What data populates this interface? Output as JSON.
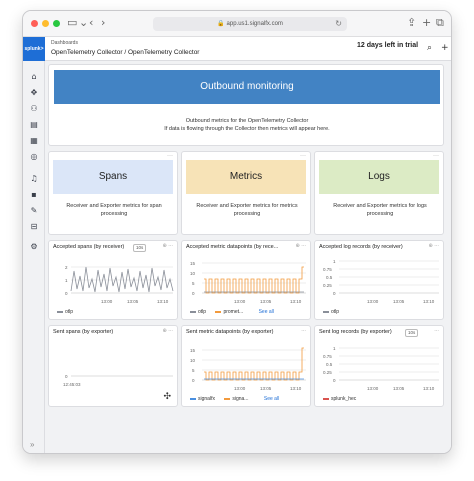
{
  "browser": {
    "url": "app.us1.signalfx.com",
    "traffic_colors": [
      "#ff5f57",
      "#febc2e",
      "#28c840"
    ]
  },
  "sidebar": {
    "logo_text": "splunk>",
    "icons": [
      "home-icon",
      "apm-icon",
      "infrastructure-icon",
      "logs-icon",
      "dashboards-icon",
      "synthetics-icon",
      "alerts-icon",
      "apps-icon",
      "settings-icon",
      "data-icon",
      "notifications-icon"
    ]
  },
  "header": {
    "breadcrumb_top": "Dashboards",
    "breadcrumb_main": "OpenTelemetry Collector / OpenTelemetry Collector",
    "trial_text": "12 days left in trial"
  },
  "banner": {
    "title": "Outbound monitoring",
    "line1": "Outbound metrics for the OpenTelemetry Collector",
    "line2": "If data is flowing through the Collector then metrics will appear here."
  },
  "tiles": [
    {
      "title": "Spans",
      "desc": "Receiver and Exporter metrics for span processing",
      "color": "#dbe6f8"
    },
    {
      "title": "Metrics",
      "desc": "Receiver and Exporter metrics for metrics processing",
      "color": "#f7e3b7"
    },
    {
      "title": "Logs",
      "desc": "Receiver and Exporter metrics for logs processing",
      "color": "#dcebc5"
    }
  ],
  "charts": [
    {
      "title": "Accepted spans (by receiver)",
      "badge": "10s",
      "ticks_x": [
        "13:00",
        "13:05",
        "13:10"
      ],
      "ticks_y": [
        "2",
        "1",
        "0"
      ],
      "legend": [
        {
          "name": "otlp",
          "color": "#8a8f99"
        }
      ],
      "see_all": ""
    },
    {
      "title": "Accepted metric datapoints (by rece...",
      "badge": "",
      "ticks_x": [
        "13:00",
        "13:05",
        "13:10"
      ],
      "ticks_y": [
        "15",
        "10",
        "5",
        "0"
      ],
      "legend": [
        {
          "name": "otlp",
          "color": "#8a8f99"
        },
        {
          "name": "promet...",
          "color": "#f29a3d"
        }
      ],
      "see_all": "See all"
    },
    {
      "title": "Accepted log records (by receiver)",
      "badge": "",
      "ticks_x": [
        "13:00",
        "13:05",
        "13:10"
      ],
      "ticks_y": [
        "1",
        "0.75",
        "0.5",
        "0.25",
        "0"
      ],
      "legend": [
        {
          "name": "otlp",
          "color": "#8a8f99"
        }
      ],
      "see_all": ""
    },
    {
      "title": "Sent spans (by exporter)",
      "badge": "",
      "ticks_x": [
        "12:45:03"
      ],
      "ticks_y": [
        "0"
      ],
      "legend": [],
      "see_all": ""
    },
    {
      "title": "Sent metric datapoints (by exporter)",
      "badge": "",
      "ticks_x": [
        "13:00",
        "13:05",
        "13:10"
      ],
      "ticks_y": [
        "15",
        "10",
        "5",
        "0"
      ],
      "legend": [
        {
          "name": "signalfx",
          "color": "#4a8fe0"
        },
        {
          "name": "signa...",
          "color": "#f29a3d"
        }
      ],
      "see_all": "See all"
    },
    {
      "title": "Sent log records (by exporter)",
      "badge": "10s",
      "ticks_x": [
        "13:00",
        "13:05",
        "13:10"
      ],
      "ticks_y": [
        "1",
        "0.75",
        "0.5",
        "0.25",
        "0"
      ],
      "legend": [
        {
          "name": "splunk_hec",
          "color": "#d9534f"
        }
      ],
      "see_all": ""
    }
  ]
}
